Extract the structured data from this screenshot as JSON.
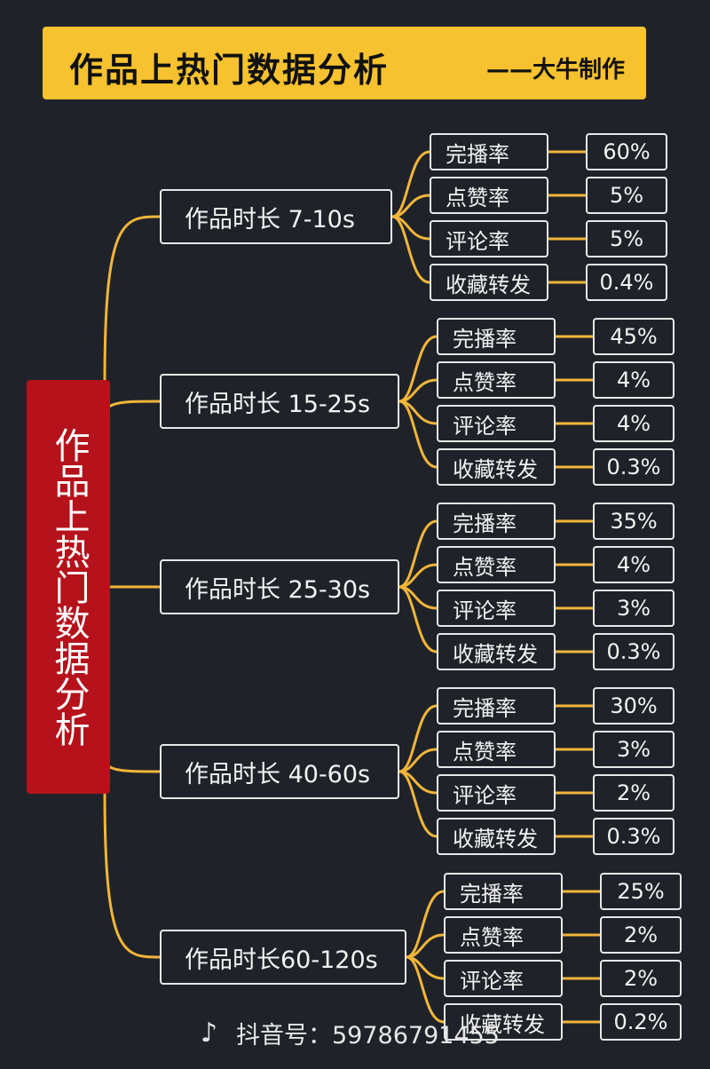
{
  "header": {
    "title": "作品上热门数据分析",
    "author": "——大牛制作"
  },
  "root": {
    "label": "作品上热门数据分析"
  },
  "colors": {
    "banner": "#f7c22f",
    "root": "#b5121b",
    "line": "#f2b53a",
    "background": "#1f2329"
  },
  "groups": [
    {
      "label": "作品时长  7-10s",
      "metrics": [
        {
          "name": "完播率",
          "value": "60%"
        },
        {
          "name": "点赞率",
          "value": "5%"
        },
        {
          "name": "评论率",
          "value": "5%"
        },
        {
          "name": "收藏转发",
          "value": "0.4%"
        }
      ]
    },
    {
      "label": "作品时长 15-25s",
      "metrics": [
        {
          "name": "完播率",
          "value": "45%"
        },
        {
          "name": "点赞率",
          "value": "4%"
        },
        {
          "name": "评论率",
          "value": "4%"
        },
        {
          "name": "收藏转发",
          "value": "0.3%"
        }
      ]
    },
    {
      "label": "作品时长 25-30s",
      "metrics": [
        {
          "name": "完播率",
          "value": "35%"
        },
        {
          "name": "点赞率",
          "value": "4%"
        },
        {
          "name": "评论率",
          "value": "3%"
        },
        {
          "name": "收藏转发",
          "value": "0.3%"
        }
      ]
    },
    {
      "label": "作品时长 40-60s",
      "metrics": [
        {
          "name": "完播率",
          "value": "30%"
        },
        {
          "name": "点赞率",
          "value": "3%"
        },
        {
          "name": "评论率",
          "value": "2%"
        },
        {
          "name": "收藏转发",
          "value": "0.3%"
        }
      ]
    },
    {
      "label": "作品时长60-120s",
      "metrics": [
        {
          "name": "完播率",
          "value": "25%"
        },
        {
          "name": "点赞率",
          "value": "2%"
        },
        {
          "name": "评论率",
          "value": "2%"
        },
        {
          "name": "收藏转发",
          "value": "0.2%"
        }
      ]
    }
  ],
  "watermark": {
    "icon": "tiktok-icon",
    "text": "抖音号：59786791455"
  }
}
